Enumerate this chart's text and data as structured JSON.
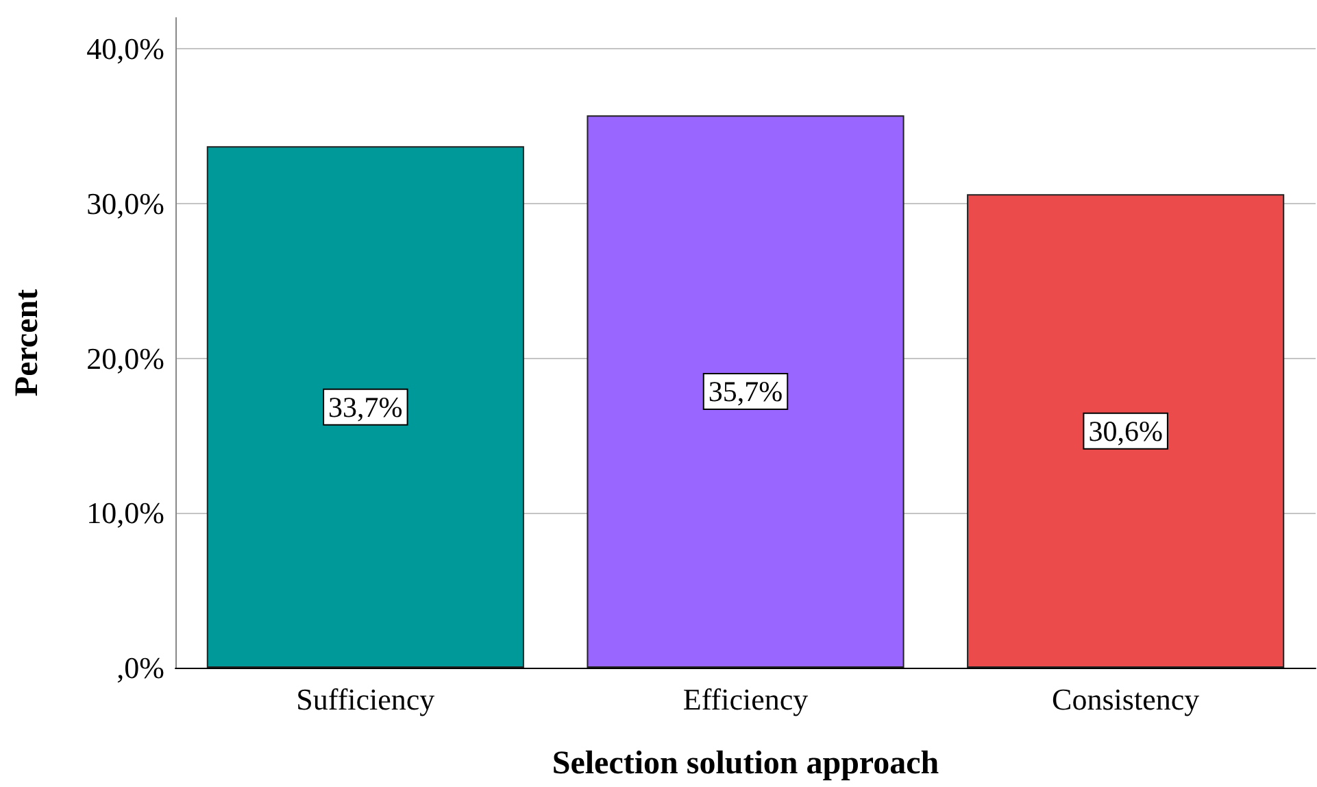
{
  "chart_data": {
    "type": "bar",
    "xlabel": "Selection solution approach",
    "ylabel": "Percent",
    "categories": [
      "Sufficiency",
      "Efficiency",
      "Consistency"
    ],
    "values": [
      33.7,
      35.7,
      30.6
    ],
    "colors": [
      "#009999",
      "#9966ff",
      "#eb4b4b"
    ],
    "value_labels": [
      "33,7%",
      "35,7%",
      "30,6%"
    ],
    "ylim": [
      0,
      42
    ],
    "yticks": [
      {
        "value": 0,
        "label": ",0%"
      },
      {
        "value": 10,
        "label": "10,0%"
      },
      {
        "value": 20,
        "label": "20,0%"
      },
      {
        "value": 30,
        "label": "30,0%"
      },
      {
        "value": 40,
        "label": "40,0%"
      }
    ],
    "grid": "y"
  }
}
